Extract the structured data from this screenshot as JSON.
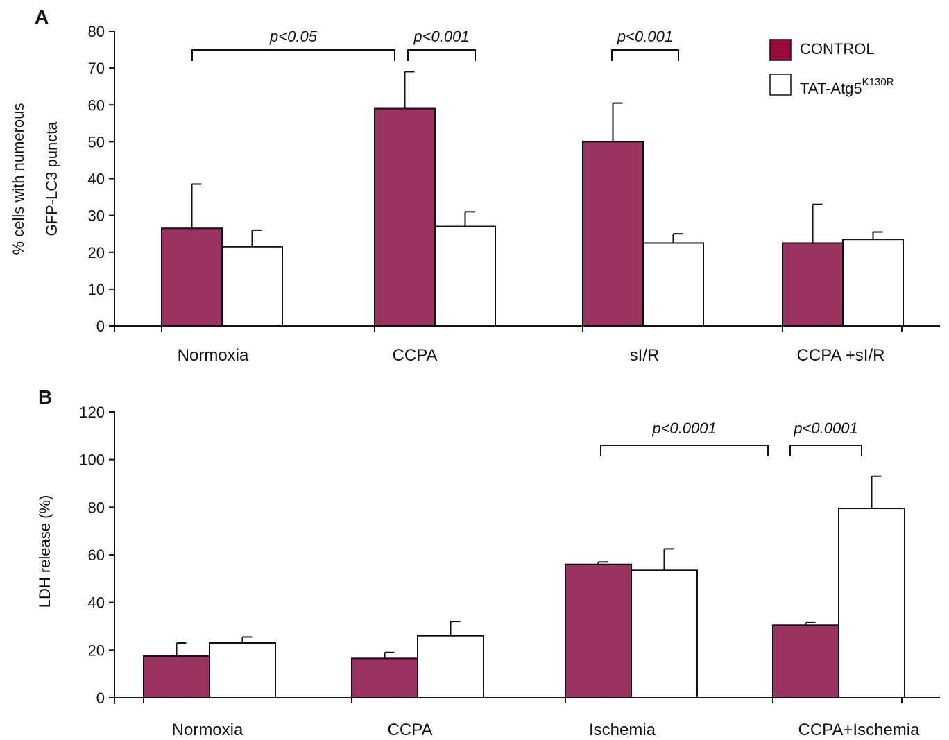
{
  "colors": {
    "control": "#993360",
    "tat": "#ffffff",
    "legend_control": "#990a3a",
    "stroke": "#111111"
  },
  "legend": {
    "control_label": "CONTROL",
    "tat_label": "TAT-Atg5",
    "tat_superscript": "K130R"
  },
  "chart_data": [
    {
      "type": "bar",
      "panel_label": "A",
      "ylabel_line1": "% cells with numerous",
      "ylabel_line2": "GFP-LC3 puncta",
      "ylim": [
        0,
        80
      ],
      "yticks": [
        0,
        10,
        20,
        30,
        40,
        50,
        60,
        70,
        80
      ],
      "categories": [
        "Normoxia",
        "CCPA",
        "sI/R",
        "CCPA +sI/R"
      ],
      "series": [
        {
          "name": "CONTROL",
          "values": [
            26.5,
            59,
            50,
            22.5
          ],
          "errors": [
            12,
            10,
            10.5,
            10.5
          ]
        },
        {
          "name": "TAT-Atg5K130R",
          "values": [
            21.5,
            27,
            22.5,
            23.5
          ],
          "errors": [
            4.5,
            4,
            2.5,
            2
          ]
        }
      ],
      "significance": [
        {
          "label": "p<0.05",
          "from": [
            0,
            0
          ],
          "to": [
            1,
            0
          ],
          "level": 75
        },
        {
          "label": "p<0.001",
          "from": [
            1,
            0
          ],
          "to": [
            1,
            1
          ],
          "level": 75
        },
        {
          "label": "p<0.001",
          "from": [
            2,
            0
          ],
          "to": [
            2,
            1
          ],
          "level": 75
        }
      ]
    },
    {
      "type": "bar",
      "panel_label": "B",
      "ylabel": "LDH  release (%)",
      "ylim": [
        0,
        120
      ],
      "yticks": [
        0,
        20,
        40,
        60,
        80,
        100,
        120
      ],
      "categories": [
        "Normoxia",
        "CCPA",
        "Ischemia",
        "CCPA+Ischemia"
      ],
      "series": [
        {
          "name": "CONTROL",
          "values": [
            17.5,
            16.5,
            56,
            30.5
          ],
          "errors": [
            5.5,
            2.5,
            1,
            1
          ]
        },
        {
          "name": "TAT-Atg5K130R",
          "values": [
            23,
            26,
            53.5,
            79.5
          ],
          "errors": [
            2.5,
            6,
            9,
            13.5
          ]
        }
      ],
      "significance": [
        {
          "label": "p<0.0001",
          "from": [
            2,
            0
          ],
          "to": [
            3,
            0
          ],
          "level": 106
        },
        {
          "label": "p<0.0001",
          "from": [
            3,
            0
          ],
          "to": [
            3,
            1
          ],
          "level": 106
        }
      ]
    }
  ]
}
